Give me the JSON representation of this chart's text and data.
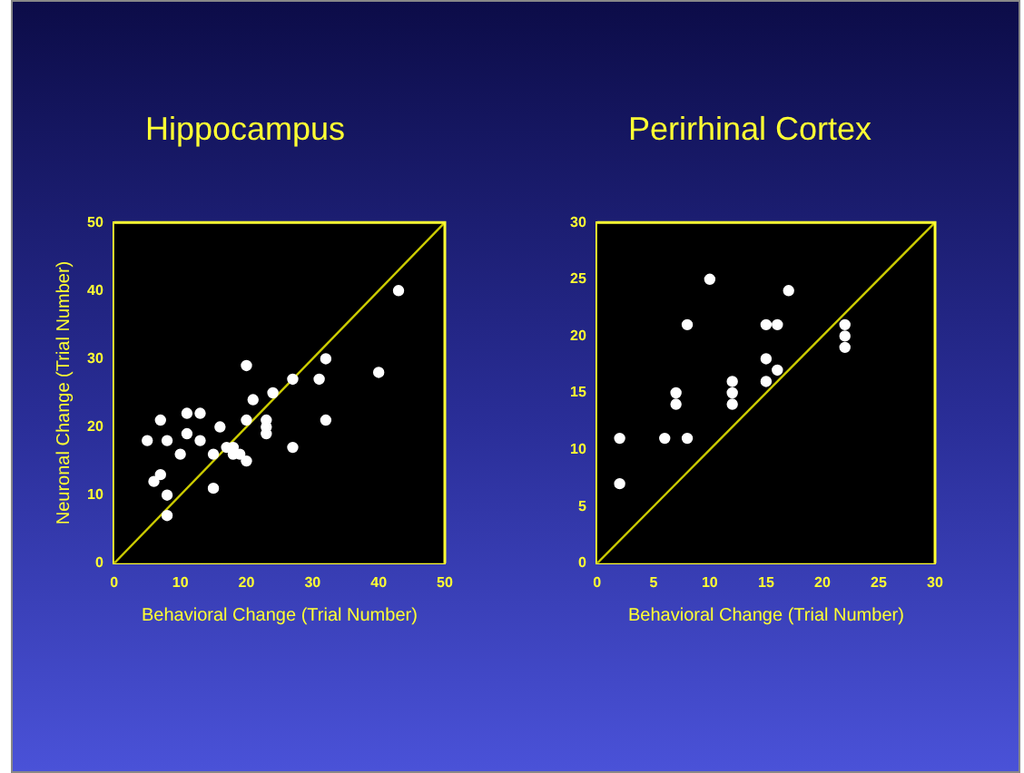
{
  "chart_data": [
    {
      "type": "scatter",
      "title": "Hippocampus",
      "xlabel": "Behavioral Change (Trial Number)",
      "ylabel": "Neuronal Change (Trial Number)",
      "xlim": [
        0,
        50
      ],
      "ylim": [
        0,
        50
      ],
      "xticks": [
        0,
        10,
        20,
        30,
        40,
        50
      ],
      "yticks": [
        0,
        10,
        20,
        30,
        40,
        50
      ],
      "grid": false,
      "legend": false,
      "series": [
        {
          "marker": "circle",
          "color": "#ffffff",
          "x": [
            5,
            7,
            6,
            7,
            8,
            8,
            8,
            10,
            11,
            11,
            13,
            13,
            15,
            15,
            16,
            17,
            18,
            18,
            19,
            20,
            20,
            20,
            21,
            23,
            23,
            23,
            24,
            27,
            27,
            31,
            32,
            32,
            40,
            43
          ],
          "values": [
            18,
            21,
            12,
            13,
            18,
            10,
            7,
            16,
            22,
            19,
            22,
            18,
            16,
            11,
            20,
            17,
            17,
            16,
            16,
            15,
            29,
            21,
            24,
            21,
            20,
            19,
            25,
            27,
            17,
            27,
            30,
            21,
            28,
            40
          ]
        },
        {
          "type": "line",
          "marker": "none",
          "color": "#cccc00",
          "x": [
            0,
            50
          ],
          "values": [
            0,
            50
          ]
        }
      ]
    },
    {
      "type": "scatter",
      "title": "Perirhinal Cortex",
      "xlabel": "Behavioral Change (Trial Number)",
      "xlim": [
        0,
        30
      ],
      "ylim": [
        0,
        30
      ],
      "xticks": [
        0,
        5,
        10,
        15,
        20,
        25,
        30
      ],
      "yticks": [
        0,
        5,
        10,
        15,
        20,
        25,
        30
      ],
      "grid": false,
      "legend": false,
      "series": [
        {
          "marker": "circle",
          "color": "#ffffff",
          "x": [
            2,
            2,
            6,
            7,
            7,
            8,
            8,
            10,
            12,
            12,
            12,
            15,
            15,
            15,
            16,
            16,
            17,
            22,
            22,
            22
          ],
          "values": [
            11,
            7,
            11,
            15,
            14,
            21,
            11,
            25,
            16,
            15,
            14,
            21,
            18,
            16,
            21,
            17,
            24,
            21,
            20,
            19
          ]
        },
        {
          "type": "line",
          "marker": "none",
          "color": "#cccc00",
          "x": [
            0,
            30
          ],
          "values": [
            0,
            30
          ]
        }
      ]
    }
  ]
}
